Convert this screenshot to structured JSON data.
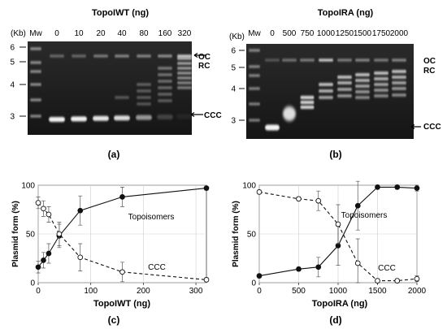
{
  "panel_a": {
    "title": "TopoIWT (ng)",
    "kb_label": "(Kb)",
    "mw_label": "Mw",
    "lane_labels": [
      "0",
      "10",
      "20",
      "40",
      "80",
      "160",
      "320"
    ],
    "kb_markers": [
      "6",
      "5",
      "4",
      "3"
    ],
    "band_labels": {
      "oc": "OC",
      "rc": "RC",
      "ccc": "CCC"
    },
    "caption": "(a)"
  },
  "panel_b": {
    "title": "TopoIRA (ng)",
    "kb_label": "(Kb)",
    "mw_label": "Mw",
    "lane_labels": [
      "0",
      "500",
      "750",
      "1000",
      "1250",
      "1500",
      "1750",
      "2000"
    ],
    "kb_markers": [
      "6",
      "5",
      "4",
      "3"
    ],
    "band_labels": {
      "oc": "OC",
      "rc": "RC",
      "ccc": "CCC"
    },
    "caption": "(b)"
  },
  "chart_data": [
    {
      "type": "line",
      "panel": "c",
      "xlabel": "TopoIWT (ng)",
      "ylabel": "Plasmid form (%)",
      "xlim": [
        0,
        320
      ],
      "ylim": [
        0,
        100
      ],
      "xticks": [
        "0",
        "100",
        "200",
        "300"
      ],
      "yticks": [
        "0",
        "50",
        "100"
      ],
      "x": [
        0,
        10,
        20,
        40,
        80,
        160,
        320
      ],
      "series": [
        {
          "name": "Topoisomers",
          "marker": "filled",
          "line": "solid",
          "values": [
            16,
            23,
            30,
            48,
            74,
            88,
            97
          ],
          "errors": [
            6,
            8,
            10,
            12,
            15,
            10,
            2
          ]
        },
        {
          "name": "CCC",
          "marker": "open",
          "line": "dashed",
          "values": [
            82,
            76,
            70,
            50,
            26,
            11,
            3
          ],
          "errors": [
            6,
            8,
            8,
            12,
            14,
            10,
            2
          ]
        }
      ],
      "caption": "(c)"
    },
    {
      "type": "line",
      "panel": "d",
      "xlabel": "TopoIRA (ng)",
      "ylabel": "Plasmid form (%)",
      "xlim": [
        0,
        2000
      ],
      "ylim": [
        0,
        100
      ],
      "xticks": [
        "0",
        "500",
        "1000",
        "1500",
        "2000"
      ],
      "yticks": [
        "0",
        "50",
        "100"
      ],
      "x": [
        0,
        500,
        750,
        1000,
        1250,
        1500,
        1750,
        2000
      ],
      "series": [
        {
          "name": "Topoisomers",
          "marker": "filled",
          "line": "solid",
          "values": [
            7,
            14,
            16,
            38,
            79,
            98,
            98,
            97
          ],
          "errors": [
            2,
            2,
            10,
            20,
            25,
            2,
            2,
            3
          ]
        },
        {
          "name": "CCC",
          "marker": "open",
          "line": "dashed",
          "values": [
            93,
            86,
            84,
            60,
            20,
            2,
            2,
            4
          ],
          "errors": [
            2,
            2,
            10,
            20,
            25,
            2,
            2,
            3
          ]
        }
      ],
      "caption": "(d)"
    }
  ]
}
